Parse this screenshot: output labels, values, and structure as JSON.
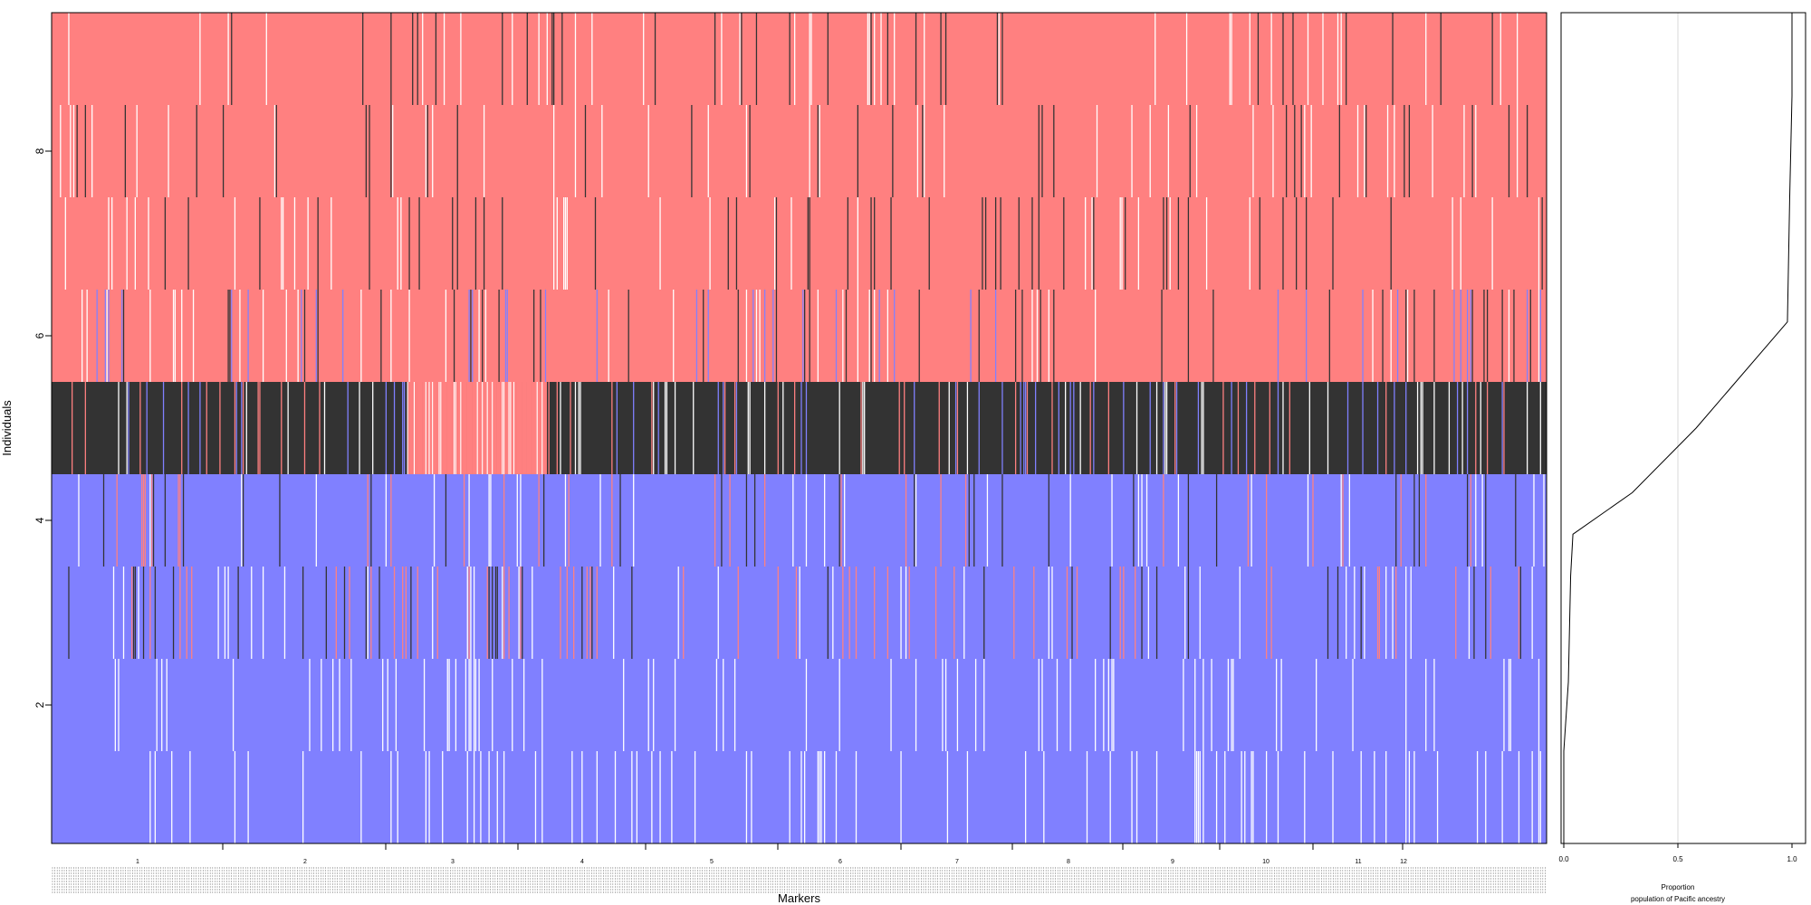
{
  "colors": {
    "pacific": "#8080ff",
    "european": "#ff8080",
    "heterozygous": "#333333",
    "missing": "#ffffff",
    "axis": "#000000",
    "gridline": "#d9d9d9"
  },
  "chart_data": [
    {
      "type": "heatmap",
      "xlabel": "Markers",
      "ylabel": "Individuals",
      "ylim": [
        0.5,
        9.5
      ],
      "y_ticks": [
        "2",
        "4",
        "6",
        "8"
      ],
      "chromosome_labels": [
        "1",
        "2",
        "3",
        "4",
        "5",
        "6",
        "7",
        "8",
        "9",
        "10",
        "11",
        "12"
      ],
      "grid": false,
      "rows": [
        {
          "individual": 1,
          "base": "pacific",
          "density": 0.08,
          "other": [
            "missing"
          ]
        },
        {
          "individual": 2,
          "base": "pacific",
          "density": 0.07,
          "other": [
            "missing"
          ]
        },
        {
          "individual": 3,
          "base": "pacific",
          "density": 0.12,
          "other": [
            "heterozygous",
            "missing",
            "european"
          ]
        },
        {
          "individual": 4,
          "base": "pacific",
          "density": 0.1,
          "other": [
            "heterozygous",
            "missing",
            "european"
          ]
        },
        {
          "individual": 5,
          "base": "heterozygous",
          "density": 0.14,
          "other": [
            "european",
            "missing",
            "pacific"
          ]
        },
        {
          "individual": 6,
          "base": "european",
          "density": 0.1,
          "other": [
            "heterozygous",
            "missing",
            "pacific"
          ]
        },
        {
          "individual": 7,
          "base": "european",
          "density": 0.08,
          "other": [
            "heterozygous",
            "missing"
          ]
        },
        {
          "individual": 8,
          "base": "european",
          "density": 0.07,
          "other": [
            "heterozygous",
            "missing"
          ]
        },
        {
          "individual": 9,
          "base": "european",
          "density": 0.06,
          "other": [
            "heterozygous",
            "missing"
          ]
        }
      ]
    },
    {
      "type": "line",
      "xlabel": "Proportion",
      "subtitle": "population of Pacific ancestry",
      "xlim": [
        0,
        1
      ],
      "x_ticks": [
        "0.0",
        "0.5",
        "1.0"
      ],
      "ylim": [
        0.5,
        9.5
      ],
      "series": [
        {
          "values": [
            {
              "individual": 0.5,
              "proportion": 0.0
            },
            {
              "individual": 1.5,
              "proportion": 0.0
            },
            {
              "individual": 2.25,
              "proportion": 0.02
            },
            {
              "individual": 3.4,
              "proportion": 0.03
            },
            {
              "individual": 3.85,
              "proportion": 0.04
            },
            {
              "individual": 4.3,
              "proportion": 0.3
            },
            {
              "individual": 5.0,
              "proportion": 0.58
            },
            {
              "individual": 6.15,
              "proportion": 0.98
            },
            {
              "individual": 7.5,
              "proportion": 0.99
            },
            {
              "individual": 8.6,
              "proportion": 1.0
            },
            {
              "individual": 9.5,
              "proportion": 1.0
            }
          ]
        }
      ]
    }
  ]
}
